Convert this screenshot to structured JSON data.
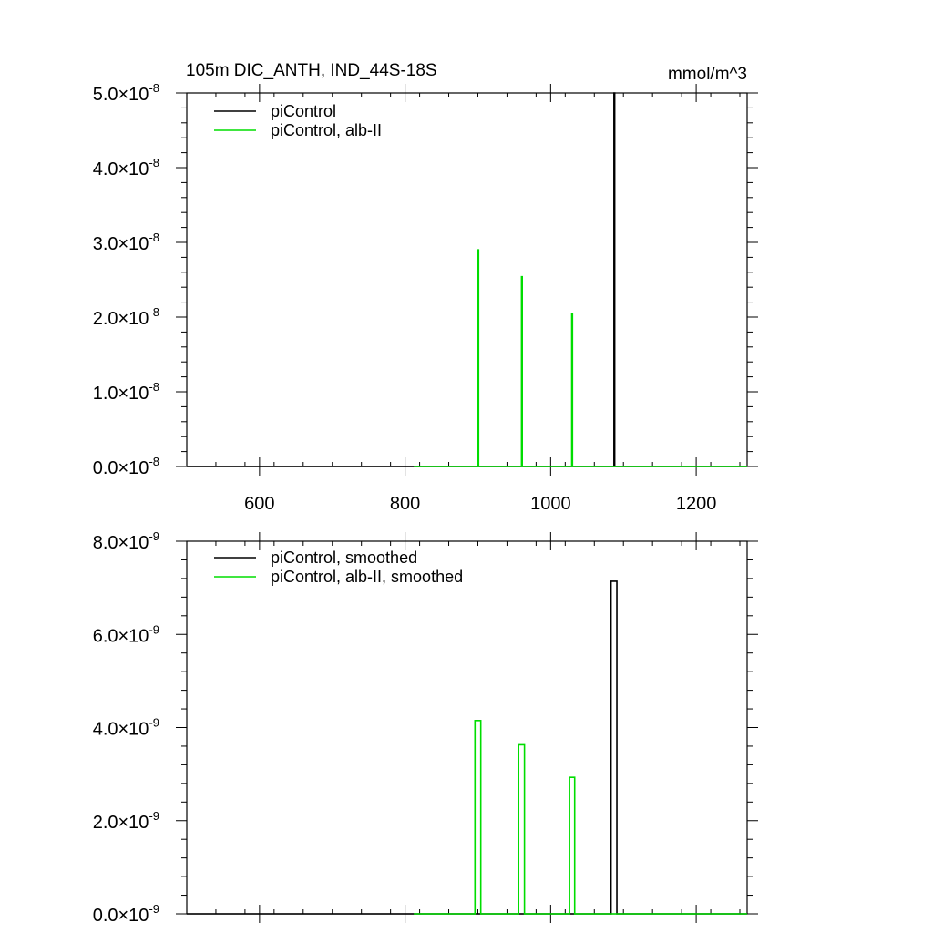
{
  "colors": {
    "piControl": "#000000",
    "albII": "#00dd00"
  },
  "chart_data": [
    {
      "type": "line",
      "title": "105m DIC_ANTH, IND_44S-18S",
      "units": "mmol/m^3",
      "xlim": [
        500,
        1270
      ],
      "ylim": [
        0,
        5e-08
      ],
      "xticks": [
        600,
        800,
        1000,
        1200
      ],
      "xtick_labels": [
        "600",
        "800",
        "1000",
        "1200"
      ],
      "yticks": [
        0,
        1e-08,
        2e-08,
        3e-08,
        4e-08,
        5e-08
      ],
      "ytick_mantissa": [
        "0.0",
        "1.0",
        "2.0",
        "3.0",
        "4.0",
        "5.0"
      ],
      "ytick_exponent": "-8",
      "show_xtick_labels": true,
      "legend": {
        "position": "top-left",
        "entries": [
          "piControl",
          "piControl, alb-II"
        ]
      },
      "series": [
        {
          "name": "piControl",
          "color_key": "piControl",
          "x": [
            500,
            1087,
            1087,
            1088,
            1088,
            1270
          ],
          "y": [
            0,
            0,
            5e-08,
            5e-08,
            0,
            0
          ]
        },
        {
          "name": "piControl, alb-II",
          "color_key": "albII",
          "x": [
            812,
            900,
            900,
            901,
            901,
            960,
            960,
            961,
            961,
            1029,
            1029,
            1030,
            1030,
            1270
          ],
          "y": [
            0,
            0,
            2.9e-08,
            2.9e-08,
            0,
            0,
            2.54e-08,
            2.54e-08,
            0,
            0,
            2.05e-08,
            2.05e-08,
            0,
            0
          ]
        }
      ]
    },
    {
      "type": "line",
      "xlim": [
        500,
        1270
      ],
      "ylim": [
        0,
        8e-09
      ],
      "xticks": [
        600,
        800,
        1000,
        1200
      ],
      "yticks": [
        0,
        2e-09,
        4e-09,
        6e-09,
        8e-09
      ],
      "ytick_mantissa": [
        "0.0",
        "2.0",
        "4.0",
        "6.0",
        "8.0"
      ],
      "ytick_exponent": "-9",
      "show_xtick_labels": false,
      "legend": {
        "position": "top-left",
        "entries": [
          "piControl, smoothed",
          "piControl, alb-II, smoothed"
        ]
      },
      "series": [
        {
          "name": "piControl, smoothed",
          "color_key": "piControl",
          "x": [
            500,
            1083,
            1083,
            1091,
            1091,
            1270
          ],
          "y": [
            0,
            0,
            7.14e-09,
            7.14e-09,
            0,
            0
          ]
        },
        {
          "name": "piControl, alb-II, smoothed",
          "color_key": "albII",
          "x": [
            812,
            896,
            896,
            904,
            904,
            956,
            956,
            964,
            964,
            1026,
            1026,
            1033,
            1033,
            1270
          ],
          "y": [
            0,
            0,
            4.15e-09,
            4.15e-09,
            0,
            0,
            3.63e-09,
            3.63e-09,
            0,
            0,
            2.93e-09,
            2.93e-09,
            0,
            0
          ]
        }
      ]
    }
  ]
}
